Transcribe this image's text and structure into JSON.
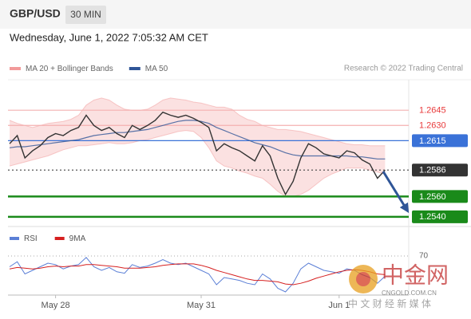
{
  "header": {
    "symbol": "GBP/USD",
    "interval": "30 MIN",
    "datetime": "Wednesday, June 1, 2022 7:05:32 AM CET",
    "copyright": "Research © 2022 Trading Central"
  },
  "watermark": {
    "brand": "中金网",
    "site": "CNGOLD.COM.CN",
    "slogan": "中 文 财 经 新 媒 体"
  },
  "chart_data": [
    {
      "type": "line",
      "ylim": [
        1.2532,
        1.2675
      ],
      "price_color": "#333333",
      "values": [
        1.2612,
        1.262,
        1.2598,
        1.2605,
        1.261,
        1.2618,
        1.2622,
        1.262,
        1.2625,
        1.2628,
        1.264,
        1.263,
        1.2625,
        1.2628,
        1.2622,
        1.2618,
        1.263,
        1.2626,
        1.263,
        1.2635,
        1.2643,
        1.264,
        1.2638,
        1.264,
        1.2637,
        1.2633,
        1.2628,
        1.2605,
        1.2612,
        1.2608,
        1.2605,
        1.26,
        1.2595,
        1.261,
        1.26,
        1.2578,
        1.2562,
        1.2575,
        1.2598,
        1.2612,
        1.2608,
        1.2602,
        1.26,
        1.2598,
        1.2605,
        1.2603,
        1.2596,
        1.2592,
        1.2578,
        1.2586
      ],
      "series": [
        {
          "name": "MA 20 + Bollinger Bands",
          "color": "#f29a9a",
          "upper": [
            1.2635,
            1.2632,
            1.263,
            1.2628,
            1.263,
            1.2632,
            1.2633,
            1.2634,
            1.2636,
            1.264,
            1.265,
            1.2655,
            1.2657,
            1.2655,
            1.265,
            1.2646,
            1.2645,
            1.2645,
            1.2646,
            1.265,
            1.2655,
            1.2657,
            1.2656,
            1.2655,
            1.2653,
            1.2652,
            1.265,
            1.2648,
            1.2648,
            1.2646,
            1.264,
            1.2636,
            1.2634,
            1.263,
            1.2628,
            1.2626,
            1.2626,
            1.2625,
            1.2624,
            1.2622,
            1.262,
            1.2618,
            1.2616,
            1.2614,
            1.2612,
            1.2611,
            1.2611,
            1.261,
            1.261,
            1.261
          ],
          "lower": [
            1.259,
            1.2592,
            1.2594,
            1.2596,
            1.2598,
            1.26,
            1.2603,
            1.2606,
            1.2608,
            1.261,
            1.261,
            1.2611,
            1.2612,
            1.2613,
            1.2612,
            1.2612,
            1.2613,
            1.2615,
            1.2616,
            1.2618,
            1.262,
            1.2622,
            1.2624,
            1.2625,
            1.2624,
            1.2618,
            1.2608,
            1.2595,
            1.259,
            1.2588,
            1.2585,
            1.2583,
            1.258,
            1.2578,
            1.2572,
            1.2565,
            1.256,
            1.256,
            1.2562,
            1.2566,
            1.2572,
            1.2578,
            1.2582,
            1.2585,
            1.2588,
            1.2588,
            1.2588,
            1.2586,
            1.2584,
            1.2582
          ]
        },
        {
          "name": "MA 50",
          "color": "#2f5597",
          "values": [
            1.2608,
            1.2609,
            1.2609,
            1.261,
            1.2611,
            1.2612,
            1.2613,
            1.2614,
            1.2615,
            1.2616,
            1.2618,
            1.262,
            1.2621,
            1.2622,
            1.2623,
            1.2623,
            1.2624,
            1.2625,
            1.2626,
            1.2628,
            1.263,
            1.2632,
            1.2634,
            1.2635,
            1.2635,
            1.2634,
            1.2632,
            1.2628,
            1.2625,
            1.2622,
            1.2619,
            1.2616,
            1.2613,
            1.2611,
            1.2609,
            1.2606,
            1.2603,
            1.2601,
            1.26,
            1.26,
            1.26,
            1.26,
            1.26,
            1.26,
            1.26,
            1.2599,
            1.2599,
            1.2598,
            1.2597,
            1.2597
          ]
        }
      ],
      "levels": [
        {
          "value": 1.2645,
          "color": "#e8393a",
          "line": "#f4b0b0",
          "box": false,
          "dash": false
        },
        {
          "value": 1.263,
          "label": "1.2630",
          "color": "#e8393a",
          "line": "#f4b0b0",
          "box": false,
          "dash": false
        },
        {
          "value": 1.2615,
          "color": "#3a72d8",
          "line": "#3a72d8",
          "box": true,
          "dash": false
        },
        {
          "value": 1.2586,
          "color": "#333333",
          "line": "#555555",
          "box": true,
          "dash": true
        },
        {
          "value": 1.256,
          "label": "1.2560",
          "color": "#1a8a1a",
          "line": "#1a8a1a",
          "box": true,
          "dash": false
        },
        {
          "value": 1.254,
          "label": "1.2540",
          "color": "#1a8a1a",
          "line": "#1a8a1a",
          "box": true,
          "dash": false
        }
      ]
    },
    {
      "type": "line",
      "ylim": [
        20,
        100
      ],
      "yticks": [
        70
      ],
      "categories": [
        null,
        null,
        null,
        null,
        null,
        null,
        "May 28",
        null,
        null,
        null,
        null,
        null,
        null,
        null,
        null,
        null,
        null,
        null,
        null,
        null,
        null,
        null,
        null,
        null,
        null,
        "May 31",
        null,
        null,
        null,
        null,
        null,
        null,
        null,
        null,
        null,
        null,
        null,
        null,
        null,
        null,
        null,
        null,
        null,
        "Jun 1",
        null,
        null,
        null,
        null,
        null,
        null
      ],
      "series": [
        {
          "name": "RSI",
          "color": "#5b7fd6",
          "values": [
            55,
            62,
            45,
            50,
            55,
            60,
            58,
            52,
            56,
            58,
            68,
            55,
            50,
            54,
            48,
            46,
            58,
            54,
            56,
            60,
            65,
            60,
            58,
            60,
            55,
            50,
            45,
            30,
            40,
            38,
            36,
            32,
            30,
            45,
            38,
            25,
            20,
            32,
            52,
            60,
            55,
            50,
            48,
            46,
            52,
            50,
            44,
            40,
            32,
            42
          ]
        },
        {
          "name": "9MA",
          "color": "#d62020",
          "values": [
            52,
            54,
            53,
            52,
            53,
            55,
            56,
            55,
            56,
            56,
            58,
            58,
            57,
            56,
            55,
            53,
            53,
            53,
            54,
            55,
            57,
            58,
            59,
            59,
            59,
            57,
            54,
            50,
            47,
            44,
            41,
            38,
            36,
            36,
            35,
            34,
            31,
            30,
            32,
            35,
            39,
            42,
            45,
            48,
            50,
            51,
            50,
            48,
            45,
            44
          ]
        }
      ]
    }
  ]
}
